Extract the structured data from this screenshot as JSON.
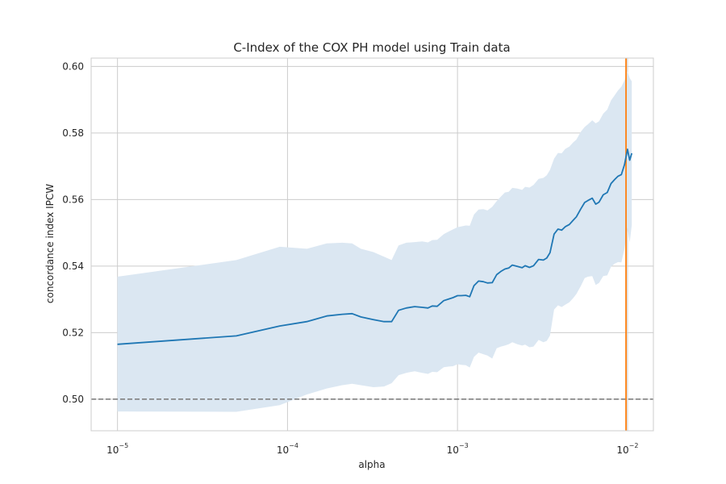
{
  "chart_data": {
    "type": "line",
    "title": "C-Index of the COX PH model using Train data",
    "xlabel": "alpha",
    "ylabel": "concordance index IPCW",
    "xscale": "log",
    "xlim": [
      7e-06,
      0.0142
    ],
    "ylim": [
      0.4905,
      0.6025
    ],
    "grid": true,
    "x_ticks": [
      {
        "value": 1e-05,
        "base": "10",
        "exp": "−5"
      },
      {
        "value": 0.0001,
        "base": "10",
        "exp": "−4"
      },
      {
        "value": 0.001,
        "base": "10",
        "exp": "−3"
      },
      {
        "value": 0.01,
        "base": "10",
        "exp": "−2"
      }
    ],
    "y_ticks": [
      {
        "value": 0.5,
        "label": "0.50"
      },
      {
        "value": 0.52,
        "label": "0.52"
      },
      {
        "value": 0.54,
        "label": "0.54"
      },
      {
        "value": 0.56,
        "label": "0.56"
      },
      {
        "value": 0.58,
        "label": "0.58"
      },
      {
        "value": 0.6,
        "label": "0.60"
      }
    ],
    "series": [
      {
        "color": "#1f77b4",
        "band_color": "#dbe7f2",
        "x": [
          1e-05,
          5e-05,
          9e-05,
          0.00013,
          0.00017,
          0.00021,
          0.00024,
          0.00027,
          0.00032,
          0.00037,
          0.00041,
          0.00045,
          0.0005,
          0.00056,
          0.00062,
          0.00067,
          0.00071,
          0.00076,
          0.00083,
          0.00089,
          0.00094,
          0.001,
          0.00105,
          0.00112,
          0.00118,
          0.00125,
          0.00133,
          0.00142,
          0.0015,
          0.0016,
          0.0017,
          0.0018,
          0.0019,
          0.002,
          0.0021,
          0.00225,
          0.0024,
          0.0025,
          0.00265,
          0.0028,
          0.003,
          0.0032,
          0.00335,
          0.0035,
          0.0037,
          0.0039,
          0.0041,
          0.0043,
          0.00455,
          0.0048,
          0.005,
          0.0053,
          0.0056,
          0.00585,
          0.0062,
          0.0065,
          0.0068,
          0.0072,
          0.0076,
          0.008,
          0.0084,
          0.0088,
          0.0092,
          0.0096,
          0.01,
          0.0103,
          0.0106
        ],
        "y": [
          0.5165,
          0.519,
          0.522,
          0.5233,
          0.525,
          0.5255,
          0.5257,
          0.5247,
          0.5239,
          0.5233,
          0.5233,
          0.5267,
          0.5274,
          0.5278,
          0.5276,
          0.5274,
          0.528,
          0.5279,
          0.5296,
          0.5301,
          0.5305,
          0.5311,
          0.5311,
          0.5312,
          0.5308,
          0.5341,
          0.5355,
          0.5353,
          0.5349,
          0.535,
          0.5374,
          0.5384,
          0.5391,
          0.5394,
          0.5403,
          0.5399,
          0.5395,
          0.5401,
          0.5396,
          0.5401,
          0.542,
          0.5418,
          0.5424,
          0.544,
          0.5496,
          0.5511,
          0.5508,
          0.5518,
          0.5525,
          0.5538,
          0.5548,
          0.5571,
          0.5591,
          0.5597,
          0.5604,
          0.5586,
          0.5592,
          0.5614,
          0.5621,
          0.5648,
          0.566,
          0.567,
          0.5675,
          0.5705,
          0.5751,
          0.5718,
          0.5739
        ],
        "upper": [
          0.5368,
          0.5418,
          0.5458,
          0.5452,
          0.5468,
          0.547,
          0.5468,
          0.5452,
          0.5442,
          0.5428,
          0.5418,
          0.5462,
          0.547,
          0.5472,
          0.5474,
          0.5471,
          0.5478,
          0.5479,
          0.5496,
          0.5504,
          0.551,
          0.5517,
          0.5519,
          0.5522,
          0.5521,
          0.5555,
          0.557,
          0.5571,
          0.5567,
          0.5578,
          0.5595,
          0.5609,
          0.5621,
          0.5623,
          0.5635,
          0.5633,
          0.5629,
          0.5638,
          0.5636,
          0.5644,
          0.5662,
          0.5665,
          0.5673,
          0.5689,
          0.5723,
          0.574,
          0.5739,
          0.5752,
          0.5759,
          0.5772,
          0.578,
          0.5803,
          0.5818,
          0.5826,
          0.5838,
          0.5829,
          0.5835,
          0.5858,
          0.587,
          0.5898,
          0.5913,
          0.5928,
          0.5939,
          0.5958,
          0.5985,
          0.5965,
          0.5955
        ],
        "lower": [
          0.4963,
          0.4962,
          0.4982,
          0.5014,
          0.5032,
          0.5042,
          0.5046,
          0.5042,
          0.5036,
          0.5038,
          0.5048,
          0.5072,
          0.5079,
          0.5084,
          0.5079,
          0.5076,
          0.5082,
          0.5081,
          0.5096,
          0.5098,
          0.5099,
          0.5105,
          0.5103,
          0.5102,
          0.5095,
          0.5127,
          0.514,
          0.5135,
          0.5131,
          0.5122,
          0.5153,
          0.5158,
          0.5161,
          0.5165,
          0.5171,
          0.5165,
          0.5161,
          0.5164,
          0.5156,
          0.5158,
          0.5178,
          0.5171,
          0.5175,
          0.5191,
          0.5269,
          0.5282,
          0.5277,
          0.5284,
          0.5291,
          0.5304,
          0.5316,
          0.5339,
          0.5364,
          0.5368,
          0.537,
          0.5343,
          0.5349,
          0.537,
          0.5372,
          0.5398,
          0.5407,
          0.5412,
          0.5411,
          0.5452,
          0.5517,
          0.5471,
          0.5523
        ]
      }
    ],
    "reference_lines": [
      {
        "orientation": "horizontal",
        "value": 0.5,
        "color": "#808080",
        "style": "dashed"
      },
      {
        "orientation": "vertical",
        "value": 0.0098,
        "color": "#ff7f0e",
        "style": "solid"
      }
    ]
  }
}
